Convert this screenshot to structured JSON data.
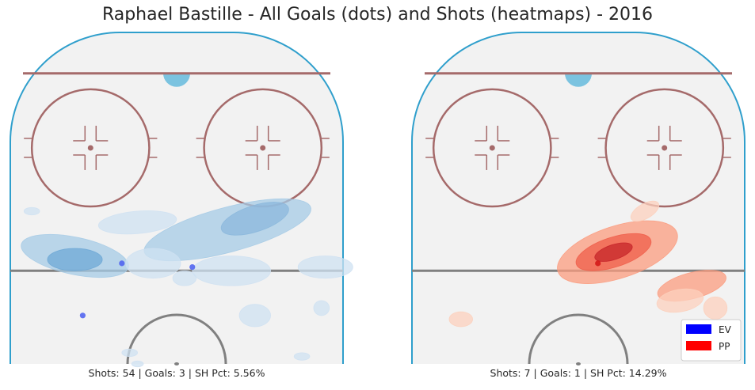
{
  "title": "Raphael Bastille - All Goals (dots) and Shots (heatmaps) - 2016",
  "colors": {
    "rink_fill": "#f2f2f2",
    "boards": "#2f9fcc",
    "crease": "#7bc3e0",
    "goal_line": "#a56a6a",
    "circle": "#a56a6a",
    "blue_line": "#808080",
    "ev": "#0000ff",
    "pp": "#ff0000"
  },
  "legend": [
    {
      "label": "EV",
      "color": "#0000ff"
    },
    {
      "label": "PP",
      "color": "#ff0000"
    }
  ],
  "chart_data": [
    {
      "type": "heatmap",
      "strength": "EV",
      "caption": "Shots: 54 | Goals: 3 | SH Pct: 5.56%",
      "shots": 54,
      "goals": 3,
      "sh_pct": 5.56,
      "goal_points": [
        {
          "x": -14,
          "y": 27
        },
        {
          "x": 4,
          "y": 26
        },
        {
          "x": -24,
          "y": 13
        }
      ],
      "shot_density": [
        {
          "x": 20,
          "y": 39,
          "rx": 9,
          "ry": 3.5,
          "angle": -18,
          "level": 4
        },
        {
          "x": 13,
          "y": 36,
          "rx": 22,
          "ry": 6,
          "angle": -15,
          "level": 2
        },
        {
          "x": -26,
          "y": 29,
          "rx": 14,
          "ry": 5,
          "angle": 12,
          "level": 2
        },
        {
          "x": -26,
          "y": 28,
          "rx": 7,
          "ry": 3,
          "angle": 0,
          "level": 3
        },
        {
          "x": -10,
          "y": 38,
          "rx": 10,
          "ry": 3,
          "angle": -5,
          "level": 1
        },
        {
          "x": -6,
          "y": 27,
          "rx": 7,
          "ry": 4,
          "angle": 0,
          "level": 1
        },
        {
          "x": 14,
          "y": 25,
          "rx": 10,
          "ry": 4,
          "angle": 0,
          "level": 1
        },
        {
          "x": 38,
          "y": 26,
          "rx": 7,
          "ry": 3,
          "angle": 0,
          "level": 1
        },
        {
          "x": 2,
          "y": 23,
          "rx": 3,
          "ry": 2,
          "angle": 0,
          "level": 1
        },
        {
          "x": 20,
          "y": 13,
          "rx": 4,
          "ry": 3,
          "angle": 0,
          "level": 1
        },
        {
          "x": 37,
          "y": 15,
          "rx": 2,
          "ry": 2,
          "angle": 0,
          "level": 1
        },
        {
          "x": -12,
          "y": 3,
          "rx": 2,
          "ry": 1,
          "angle": 0,
          "level": 1
        },
        {
          "x": 32,
          "y": 2,
          "rx": 2,
          "ry": 1,
          "angle": 0,
          "level": 1
        },
        {
          "x": -10,
          "y": 0,
          "rx": 1.5,
          "ry": 0.8,
          "angle": 0,
          "level": 1
        },
        {
          "x": -37,
          "y": 41,
          "rx": 2,
          "ry": 1,
          "angle": 0,
          "level": 1
        }
      ]
    },
    {
      "type": "heatmap",
      "strength": "PP",
      "caption": "Shots: 7 | Goals: 1 | SH Pct: 14.29%",
      "shots": 7,
      "goals": 1,
      "sh_pct": 14.29,
      "goal_points": [
        {
          "x": 5,
          "y": 27
        }
      ],
      "shot_density": [
        {
          "x": 10,
          "y": 30,
          "rx": 16,
          "ry": 7,
          "angle": -18,
          "level": 2
        },
        {
          "x": 9,
          "y": 30,
          "rx": 10,
          "ry": 4,
          "angle": -18,
          "level": 3
        },
        {
          "x": 9,
          "y": 30,
          "rx": 5,
          "ry": 2,
          "angle": -18,
          "level": 4
        },
        {
          "x": 29,
          "y": 21,
          "rx": 9,
          "ry": 3.5,
          "angle": -15,
          "level": 2
        },
        {
          "x": 26,
          "y": 17,
          "rx": 6,
          "ry": 3,
          "angle": -10,
          "level": 1
        },
        {
          "x": 35,
          "y": 15,
          "rx": 3,
          "ry": 3,
          "angle": 0,
          "level": 1
        },
        {
          "x": 17,
          "y": 41,
          "rx": 4,
          "ry": 2,
          "angle": -30,
          "level": 1
        },
        {
          "x": -30,
          "y": 12,
          "rx": 3,
          "ry": 2,
          "angle": 0,
          "level": 1
        }
      ]
    }
  ]
}
